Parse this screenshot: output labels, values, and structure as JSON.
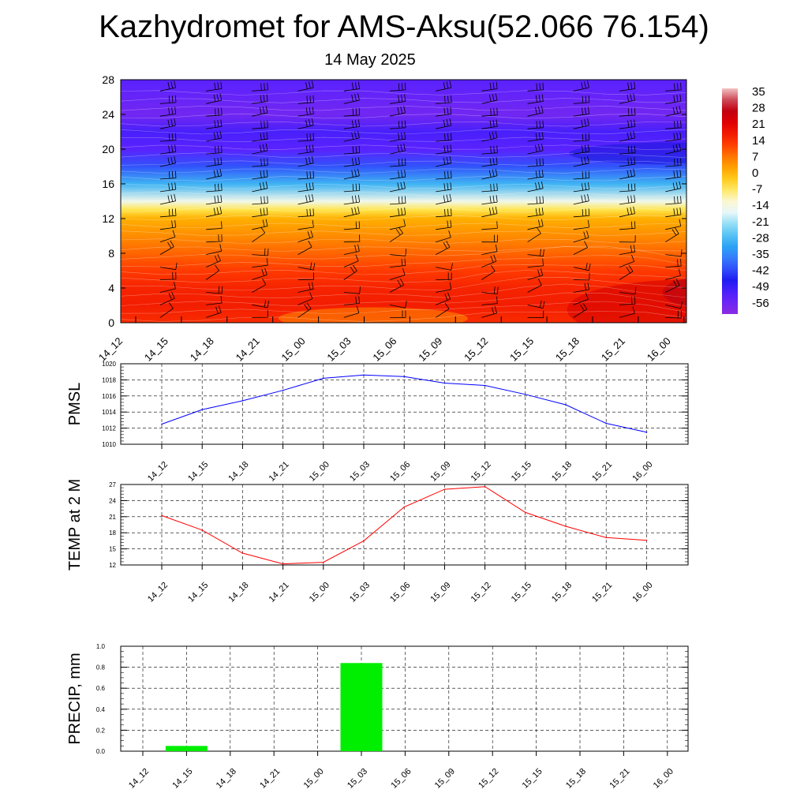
{
  "header": {
    "title": "Kazhydromet for AMS-Aksu(52.066 76.154)",
    "subtitle": "14 May 2025"
  },
  "time_labels": [
    "14_12",
    "14_15",
    "14_18",
    "14_21",
    "15_00",
    "15_03",
    "15_06",
    "15_09",
    "15_12",
    "15_15",
    "15_18",
    "15_21",
    "16_00"
  ],
  "chart_data": [
    {
      "type": "heatmap",
      "title": "",
      "xlabel": "",
      "ylabel": "",
      "x": [
        "14_12",
        "14_15",
        "14_18",
        "14_21",
        "15_00",
        "15_03",
        "15_06",
        "15_09",
        "15_12",
        "15_15",
        "15_18",
        "15_21",
        "16_00"
      ],
      "y_ticks": [
        0,
        4,
        8,
        12,
        16,
        20,
        24,
        28
      ],
      "ylim": [
        0,
        28
      ],
      "colorbar": {
        "labels": [
          "35",
          "28",
          "21",
          "14",
          "7",
          "0",
          "-7",
          "-14",
          "-21",
          "-28",
          "-35",
          "-42",
          "-49",
          "-56"
        ],
        "range": [
          -60,
          38
        ]
      },
      "surface_temperature_profile": {
        "levels": [
          0,
          2,
          4,
          6,
          8,
          10,
          12,
          13,
          14,
          16,
          18,
          20,
          22,
          24,
          26,
          28
        ],
        "values": [
          16,
          18,
          17,
          14,
          10,
          6,
          2,
          -5,
          -14,
          -28,
          -40,
          -52,
          -50,
          -56,
          -54,
          -52
        ]
      },
      "features": "temperature field with wind barbs overlaid",
      "grid": false
    },
    {
      "type": "line",
      "ylabel": "PMSL",
      "x": [
        "14_12",
        "14_15",
        "14_18",
        "14_21",
        "15_00",
        "15_03",
        "15_06",
        "15_09",
        "15_12",
        "15_15",
        "15_18",
        "15_21",
        "16_00"
      ],
      "series": [
        {
          "values": [
            1012.5,
            1014.3,
            1015.4,
            1016.7,
            1018.2,
            1018.6,
            1018.4,
            1017.6,
            1017.3,
            1016.2,
            1014.9,
            1012.6,
            1011.5
          ],
          "color": "#0000ff"
        }
      ],
      "ylim": [
        1010,
        1020
      ],
      "y_ticks": [
        1010,
        1012,
        1014,
        1016,
        1018,
        1020
      ],
      "grid": true
    },
    {
      "type": "line",
      "ylabel": "TEMP at 2 M",
      "x": [
        "14_12",
        "14_15",
        "14_18",
        "14_21",
        "15_00",
        "15_03",
        "15_06",
        "15_09",
        "15_12",
        "15_15",
        "15_18",
        "15_21",
        "16_00"
      ],
      "series": [
        {
          "values": [
            21.2,
            18.5,
            14.2,
            12.2,
            12.5,
            16.5,
            22.8,
            26.1,
            26.6,
            21.8,
            19.2,
            17.1,
            16.6
          ],
          "color": "#ff0000"
        }
      ],
      "ylim": [
        12,
        27
      ],
      "y_ticks": [
        12,
        15,
        18,
        21,
        24,
        27
      ],
      "grid": true
    },
    {
      "type": "bar",
      "ylabel": "PRECIP, mm",
      "categories": [
        "14_12",
        "14_15",
        "14_18",
        "14_21",
        "15_00",
        "15_03",
        "15_06",
        "15_09",
        "15_12",
        "15_15",
        "15_18",
        "15_21",
        "16_00"
      ],
      "values": [
        0,
        0.05,
        0,
        0,
        0,
        0.84,
        0,
        0,
        0,
        0,
        0,
        0,
        0
      ],
      "color": "#00ee00",
      "ylim": [
        0,
        1.0
      ],
      "y_ticks": [
        "0.0",
        "0.2",
        "0.4",
        "0.6",
        "0.8",
        "1.0"
      ],
      "grid": true
    }
  ]
}
